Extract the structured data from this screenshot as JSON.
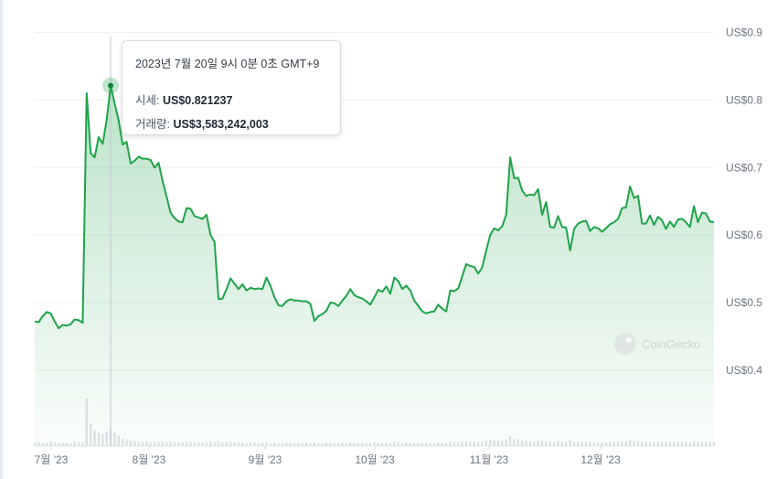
{
  "chart_data": {
    "type": "area",
    "x_tick_labels": [
      "7월 '23",
      "8월 '23",
      "9월 '23",
      "10월 '23",
      "11월 '23",
      "12월 '23"
    ],
    "y_ticks": [
      {
        "value": 0.9,
        "label": "US$0.9"
      },
      {
        "value": 0.8,
        "label": "US$0.8"
      },
      {
        "value": 0.7,
        "label": "US$0.7"
      },
      {
        "value": 0.6,
        "label": "US$0.6"
      },
      {
        "value": 0.5,
        "label": "US$0.5"
      },
      {
        "value": 0.4,
        "label": "US$0.4"
      }
    ],
    "ylim": [
      0.385,
      0.925
    ],
    "grid": true,
    "line_color": "#1fa34a",
    "fill_color": "#1fa34a",
    "series": [
      {
        "values": [
          0.472,
          0.471,
          0.48,
          0.486,
          0.484,
          0.472,
          0.462,
          0.467,
          0.466,
          0.468,
          0.475,
          0.474,
          0.47,
          0.81,
          0.721,
          0.715,
          0.745,
          0.735,
          0.77,
          0.821,
          0.795,
          0.77,
          0.734,
          0.738,
          0.706,
          0.71,
          0.716,
          0.713,
          0.713,
          0.711,
          0.7,
          0.707,
          0.68,
          0.657,
          0.633,
          0.625,
          0.62,
          0.619,
          0.64,
          0.639,
          0.628,
          0.626,
          0.624,
          0.63,
          0.6,
          0.59,
          0.505,
          0.506,
          0.52,
          0.536,
          0.528,
          0.52,
          0.527,
          0.518,
          0.522,
          0.52,
          0.521,
          0.52,
          0.537,
          0.525,
          0.508,
          0.496,
          0.495,
          0.502,
          0.505,
          0.503,
          0.503,
          0.502,
          0.502,
          0.498,
          0.473,
          0.48,
          0.483,
          0.488,
          0.5,
          0.499,
          0.495,
          0.503,
          0.51,
          0.52,
          0.511,
          0.508,
          0.506,
          0.502,
          0.497,
          0.508,
          0.519,
          0.516,
          0.524,
          0.513,
          0.537,
          0.532,
          0.52,
          0.525,
          0.518,
          0.503,
          0.495,
          0.487,
          0.484,
          0.486,
          0.487,
          0.497,
          0.491,
          0.487,
          0.518,
          0.517,
          0.521,
          0.539,
          0.557,
          0.554,
          0.553,
          0.543,
          0.552,
          0.577,
          0.6,
          0.61,
          0.607,
          0.613,
          0.63,
          0.715,
          0.684,
          0.685,
          0.666,
          0.658,
          0.66,
          0.659,
          0.668,
          0.63,
          0.649,
          0.612,
          0.611,
          0.628,
          0.612,
          0.611,
          0.577,
          0.609,
          0.617,
          0.62,
          0.621,
          0.606,
          0.612,
          0.61,
          0.605,
          0.61,
          0.616,
          0.619,
          0.624,
          0.64,
          0.641,
          0.672,
          0.655,
          0.658,
          0.617,
          0.617,
          0.629,
          0.615,
          0.627,
          0.622,
          0.609,
          0.62,
          0.612,
          0.623,
          0.624,
          0.619,
          0.612,
          0.643,
          0.619,
          0.633,
          0.632,
          0.62,
          0.619
        ]
      }
    ],
    "volume": [
      0.05,
      0.06,
      0.04,
      0.05,
      0.06,
      0.05,
      0.04,
      0.05,
      0.05,
      0.04,
      0.06,
      0.05,
      0.05,
      0.65,
      0.3,
      0.22,
      0.18,
      0.16,
      0.2,
      0.24,
      0.18,
      0.14,
      0.1,
      0.08,
      0.07,
      0.07,
      0.06,
      0.06,
      0.06,
      0.05,
      0.06,
      0.05,
      0.06,
      0.05,
      0.06,
      0.05,
      0.05,
      0.05,
      0.06,
      0.05,
      0.05,
      0.05,
      0.05,
      0.05,
      0.06,
      0.05,
      0.07,
      0.05,
      0.05,
      0.06,
      0.05,
      0.05,
      0.05,
      0.04,
      0.05,
      0.05,
      0.04,
      0.05,
      0.05,
      0.04,
      0.05,
      0.04,
      0.04,
      0.05,
      0.04,
      0.04,
      0.04,
      0.04,
      0.05,
      0.04,
      0.05,
      0.04,
      0.04,
      0.05,
      0.04,
      0.04,
      0.04,
      0.05,
      0.04,
      0.05,
      0.04,
      0.04,
      0.04,
      0.04,
      0.04,
      0.05,
      0.04,
      0.04,
      0.05,
      0.04,
      0.06,
      0.05,
      0.04,
      0.05,
      0.04,
      0.04,
      0.04,
      0.04,
      0.04,
      0.04,
      0.04,
      0.05,
      0.04,
      0.04,
      0.06,
      0.05,
      0.05,
      0.06,
      0.07,
      0.06,
      0.06,
      0.05,
      0.06,
      0.08,
      0.09,
      0.08,
      0.07,
      0.07,
      0.09,
      0.14,
      0.1,
      0.09,
      0.08,
      0.07,
      0.07,
      0.06,
      0.08,
      0.07,
      0.07,
      0.06,
      0.06,
      0.07,
      0.06,
      0.06,
      0.08,
      0.06,
      0.06,
      0.06,
      0.06,
      0.05,
      0.05,
      0.05,
      0.05,
      0.05,
      0.06,
      0.06,
      0.06,
      0.07,
      0.06,
      0.08,
      0.07,
      0.07,
      0.06,
      0.05,
      0.06,
      0.05,
      0.06,
      0.05,
      0.05,
      0.06,
      0.05,
      0.06,
      0.06,
      0.05,
      0.05,
      0.07,
      0.06,
      0.06,
      0.06,
      0.05,
      0.05
    ],
    "hover": {
      "index": 19,
      "price_value": 0.821237
    }
  },
  "tooltip": {
    "date": "2023년 7월 20일 9시 0분 0초 GMT+9",
    "price_label": "시세:",
    "price": "US$0.821237",
    "volume_label": "거래량:",
    "volume": "US$3,583,242,003"
  },
  "watermark": {
    "text": "CoinGecko",
    "icon": "coingecko-gecko-icon"
  }
}
